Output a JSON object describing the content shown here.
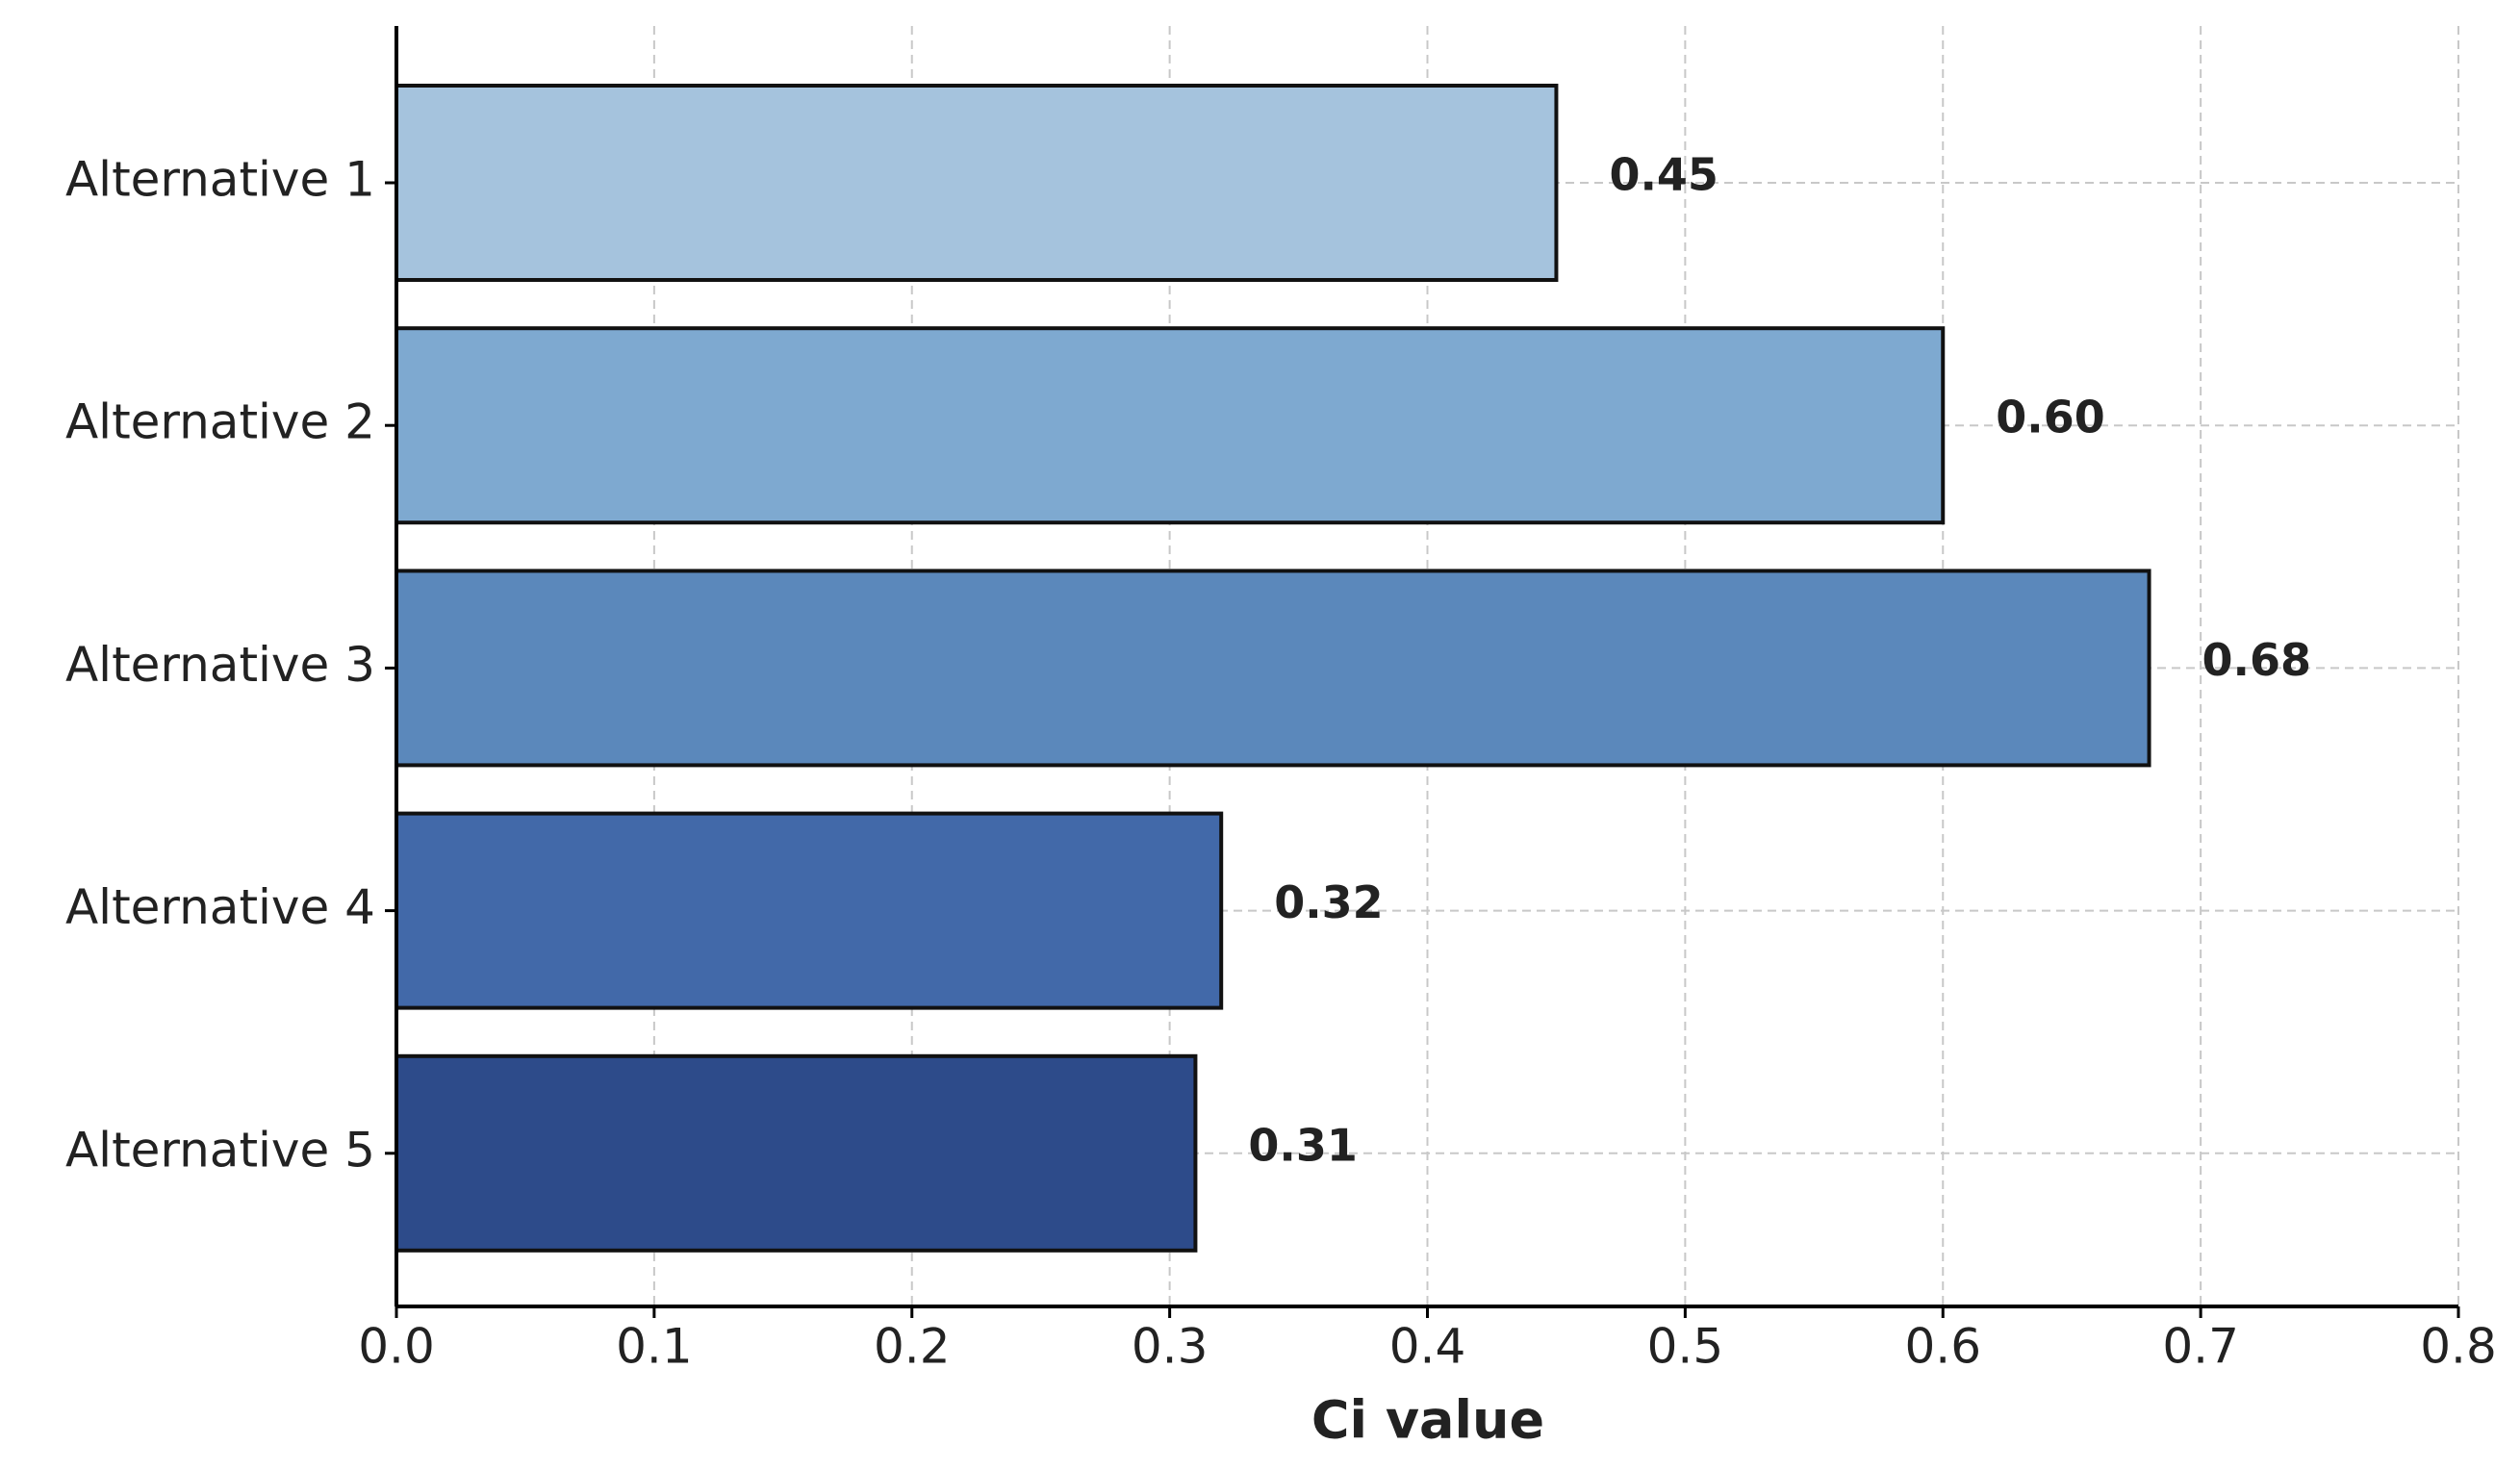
{
  "chart_data": {
    "type": "barh",
    "categories": [
      "Alternative 1",
      "Alternative 2",
      "Alternative 3",
      "Alternative 4",
      "Alternative 5"
    ],
    "values": [
      0.45,
      0.6,
      0.68,
      0.32,
      0.31
    ],
    "value_labels": [
      "0.45",
      "0.60",
      "0.68",
      "0.32",
      "0.31"
    ],
    "colors": [
      "#a5c3dd",
      "#7ea9d0",
      "#5b88bb",
      "#4269a9",
      "#2d4b8a"
    ],
    "xlabel": "Ci value",
    "xlim": [
      0,
      0.8
    ],
    "xticks": [
      {
        "value": 0,
        "label": "0.0"
      },
      0.1,
      0.2,
      0.3,
      0.4,
      0.5,
      0.6,
      0.7,
      0.8
    ],
    "grid": true
  }
}
